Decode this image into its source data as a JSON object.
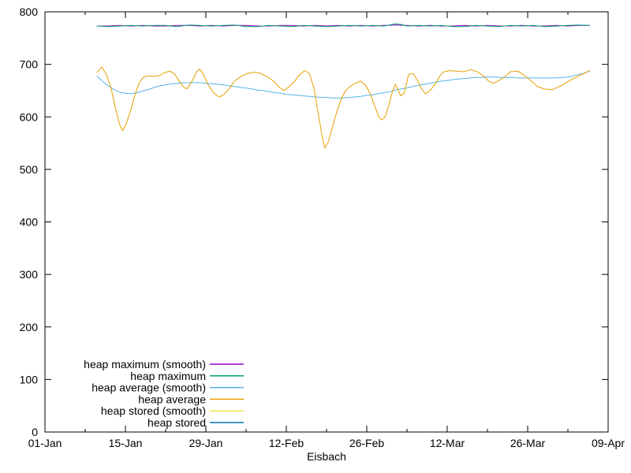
{
  "chart_data": {
    "type": "line",
    "title": "",
    "xlabel": "Eisbach",
    "ylabel": "",
    "background_color": "#ffffff",
    "axis_color": "#000000",
    "grid": false,
    "legend_position": "bottom-left",
    "ylim": [
      0,
      800
    ],
    "y_ticks": [
      "0",
      "100",
      "200",
      "300",
      "400",
      "500",
      "600",
      "700",
      "800"
    ],
    "xlim_days": [
      0,
      98
    ],
    "x_ticks": [
      {
        "day": 0,
        "label": "01-Jan"
      },
      {
        "day": 14,
        "label": "15-Jan"
      },
      {
        "day": 28,
        "label": "29-Jan"
      },
      {
        "day": 42,
        "label": "12-Feb"
      },
      {
        "day": 56,
        "label": "26-Feb"
      },
      {
        "day": 70,
        "label": "12-Mar"
      },
      {
        "day": 84,
        "label": "26-Mar"
      },
      {
        "day": 98,
        "label": "09-Apr"
      }
    ],
    "x_minor_days": [
      7,
      21,
      35,
      49,
      63,
      77,
      91
    ],
    "series": [
      {
        "name": "heap maximum (smooth)",
        "color": "#9400d3",
        "points": [
          [
            9,
            773
          ],
          [
            11,
            773
          ],
          [
            13,
            774
          ],
          [
            15,
            773
          ],
          [
            17,
            774
          ],
          [
            19,
            773
          ],
          [
            21,
            773
          ],
          [
            23,
            774
          ],
          [
            25,
            774
          ],
          [
            27,
            773
          ],
          [
            29,
            774
          ],
          [
            31,
            773
          ],
          [
            33,
            774
          ],
          [
            35,
            774
          ],
          [
            37,
            773
          ],
          [
            39,
            773
          ],
          [
            41,
            774
          ],
          [
            43,
            774
          ],
          [
            45,
            773
          ],
          [
            47,
            774
          ],
          [
            49,
            773
          ],
          [
            51,
            774
          ],
          [
            53,
            773
          ],
          [
            55,
            774
          ],
          [
            57,
            773
          ],
          [
            59,
            774
          ],
          [
            61,
            775
          ],
          [
            63,
            774
          ],
          [
            65,
            773
          ],
          [
            67,
            774
          ],
          [
            69,
            773
          ],
          [
            71,
            773
          ],
          [
            73,
            774
          ],
          [
            75,
            773
          ],
          [
            77,
            774
          ],
          [
            79,
            773
          ],
          [
            81,
            773
          ],
          [
            83,
            774
          ],
          [
            85,
            773
          ],
          [
            87,
            773
          ],
          [
            89,
            774
          ],
          [
            91,
            773
          ],
          [
            93,
            774
          ],
          [
            94.8,
            774
          ]
        ]
      },
      {
        "name": "heap maximum",
        "color": "#009e73",
        "points": [
          [
            9,
            773
          ],
          [
            11,
            772
          ],
          [
            13,
            773
          ],
          [
            15,
            774
          ],
          [
            17,
            773
          ],
          [
            19,
            774
          ],
          [
            21,
            774
          ],
          [
            23,
            772
          ],
          [
            25,
            775
          ],
          [
            27,
            774
          ],
          [
            29,
            773
          ],
          [
            31,
            774
          ],
          [
            33,
            775
          ],
          [
            35,
            772
          ],
          [
            37,
            772
          ],
          [
            39,
            774
          ],
          [
            41,
            773
          ],
          [
            43,
            772
          ],
          [
            45,
            774
          ],
          [
            47,
            773
          ],
          [
            49,
            772
          ],
          [
            51,
            773
          ],
          [
            53,
            774
          ],
          [
            55,
            773
          ],
          [
            57,
            774
          ],
          [
            59,
            773
          ],
          [
            61,
            777
          ],
          [
            62,
            776
          ],
          [
            63,
            773
          ],
          [
            65,
            774
          ],
          [
            67,
            773
          ],
          [
            69,
            774
          ],
          [
            71,
            772
          ],
          [
            73,
            772
          ],
          [
            75,
            774
          ],
          [
            77,
            773
          ],
          [
            79,
            772
          ],
          [
            81,
            774
          ],
          [
            83,
            773
          ],
          [
            85,
            774
          ],
          [
            87,
            772
          ],
          [
            89,
            773
          ],
          [
            91,
            774
          ],
          [
            93,
            775
          ],
          [
            94.8,
            774
          ]
        ]
      },
      {
        "name": "heap average (smooth)",
        "color": "#56b4e9",
        "points": [
          [
            9,
            678
          ],
          [
            10,
            668
          ],
          [
            11,
            659
          ],
          [
            12,
            652
          ],
          [
            13,
            647
          ],
          [
            14,
            645
          ],
          [
            15,
            644
          ],
          [
            16,
            646
          ],
          [
            17,
            649
          ],
          [
            18,
            652
          ],
          [
            19,
            656
          ],
          [
            20,
            659
          ],
          [
            21,
            661
          ],
          [
            22,
            663
          ],
          [
            23,
            664
          ],
          [
            24,
            665
          ],
          [
            25,
            665
          ],
          [
            26,
            665
          ],
          [
            27,
            665
          ],
          [
            28,
            664
          ],
          [
            29,
            663
          ],
          [
            30,
            662
          ],
          [
            31,
            661
          ],
          [
            32,
            659
          ],
          [
            33,
            658
          ],
          [
            34,
            656
          ],
          [
            35,
            655
          ],
          [
            36,
            653
          ],
          [
            37,
            651
          ],
          [
            38,
            650
          ],
          [
            39,
            648
          ],
          [
            40,
            646
          ],
          [
            41,
            645
          ],
          [
            42,
            643
          ],
          [
            43,
            642
          ],
          [
            44,
            641
          ],
          [
            45,
            640
          ],
          [
            46,
            639
          ],
          [
            47,
            638
          ],
          [
            48,
            637
          ],
          [
            49,
            637
          ],
          [
            50,
            636
          ],
          [
            51,
            636
          ],
          [
            52,
            636
          ],
          [
            53,
            637
          ],
          [
            54,
            638
          ],
          [
            55,
            639
          ],
          [
            56,
            641
          ],
          [
            57,
            642
          ],
          [
            58,
            644
          ],
          [
            59,
            646
          ],
          [
            60,
            648
          ],
          [
            61,
            651
          ],
          [
            62,
            653
          ],
          [
            63,
            655
          ],
          [
            64,
            658
          ],
          [
            65,
            660
          ],
          [
            66,
            662
          ],
          [
            67,
            664
          ],
          [
            68,
            666
          ],
          [
            69,
            668
          ],
          [
            70,
            669
          ],
          [
            71,
            671
          ],
          [
            72,
            672
          ],
          [
            73,
            673
          ],
          [
            74,
            674
          ],
          [
            75,
            675
          ],
          [
            76,
            675
          ],
          [
            77,
            676
          ],
          [
            78,
            676
          ],
          [
            79,
            675
          ],
          [
            80,
            675
          ],
          [
            81,
            675
          ],
          [
            82,
            674
          ],
          [
            83,
            674
          ],
          [
            84,
            674
          ],
          [
            85,
            674
          ],
          [
            86,
            674
          ],
          [
            87,
            674
          ],
          [
            88,
            674
          ],
          [
            89,
            674
          ],
          [
            90,
            675
          ],
          [
            91,
            676
          ],
          [
            92,
            678
          ],
          [
            93,
            681
          ],
          [
            94,
            684
          ],
          [
            94.8,
            687
          ]
        ]
      },
      {
        "name": "heap average",
        "color": "#e69f00",
        "points": [
          [
            9,
            684
          ],
          [
            9.9,
            695
          ],
          [
            10.7,
            680
          ],
          [
            11.5,
            655
          ],
          [
            12.3,
            615
          ],
          [
            13,
            585
          ],
          [
            13.5,
            574
          ],
          [
            14,
            583
          ],
          [
            14.8,
            608
          ],
          [
            15.6,
            640
          ],
          [
            16.4,
            665
          ],
          [
            17.2,
            676
          ],
          [
            18,
            678
          ],
          [
            19,
            677
          ],
          [
            20,
            679
          ],
          [
            21,
            685
          ],
          [
            21.8,
            687
          ],
          [
            22.6,
            681
          ],
          [
            23.5,
            666
          ],
          [
            24.3,
            655
          ],
          [
            24.8,
            654
          ],
          [
            25.6,
            668
          ],
          [
            26.4,
            686
          ],
          [
            26.9,
            691
          ],
          [
            27.5,
            683
          ],
          [
            28.3,
            663
          ],
          [
            29.2,
            648
          ],
          [
            30,
            640
          ],
          [
            30.4,
            638
          ],
          [
            31.2,
            643
          ],
          [
            32,
            653
          ],
          [
            33,
            668
          ],
          [
            34.2,
            678
          ],
          [
            35.3,
            683
          ],
          [
            36.5,
            685
          ],
          [
            37.5,
            683
          ],
          [
            38.7,
            676
          ],
          [
            39.8,
            668
          ],
          [
            40.8,
            656
          ],
          [
            41.6,
            650
          ],
          [
            42.4,
            657
          ],
          [
            43.3,
            666
          ],
          [
            44.3,
            680
          ],
          [
            45.2,
            688
          ],
          [
            46,
            683
          ],
          [
            46.8,
            655
          ],
          [
            47.5,
            610
          ],
          [
            48.2,
            565
          ],
          [
            48.7,
            541
          ],
          [
            49.3,
            552
          ],
          [
            50,
            580
          ],
          [
            50.8,
            610
          ],
          [
            51.5,
            632
          ],
          [
            52.3,
            650
          ],
          [
            53.1,
            658
          ],
          [
            54,
            664
          ],
          [
            54.9,
            668
          ],
          [
            55.8,
            660
          ],
          [
            56.6,
            644
          ],
          [
            57.4,
            620
          ],
          [
            58.1,
            600
          ],
          [
            58.6,
            594
          ],
          [
            59.2,
            600
          ],
          [
            59.9,
            625
          ],
          [
            60.5,
            650
          ],
          [
            61,
            662
          ],
          [
            61.9,
            640
          ],
          [
            62.5,
            645
          ],
          [
            63.3,
            681
          ],
          [
            64,
            683
          ],
          [
            64.8,
            670
          ],
          [
            65.6,
            652
          ],
          [
            66.2,
            644
          ],
          [
            67,
            650
          ],
          [
            67.9,
            662
          ],
          [
            68.7,
            678
          ],
          [
            69.4,
            686
          ],
          [
            70.5,
            688
          ],
          [
            71.5,
            687
          ],
          [
            72.9,
            686
          ],
          [
            74.1,
            690
          ],
          [
            75.2,
            686
          ],
          [
            76.3,
            678
          ],
          [
            77.2,
            668
          ],
          [
            78,
            664
          ],
          [
            78.8,
            668
          ],
          [
            80,
            676
          ],
          [
            81,
            686
          ],
          [
            82.3,
            687
          ],
          [
            83.4,
            679
          ],
          [
            84.6,
            668
          ],
          [
            85.7,
            658
          ],
          [
            86.9,
            653
          ],
          [
            88.3,
            652
          ],
          [
            89.6,
            658
          ],
          [
            90.7,
            665
          ],
          [
            91.8,
            672
          ],
          [
            92.9,
            678
          ],
          [
            93.8,
            683
          ],
          [
            94.8,
            688
          ]
        ]
      },
      {
        "name": "heap stored (smooth)",
        "color": "#f0e442",
        "points": []
      },
      {
        "name": "heap stored",
        "color": "#0072b2",
        "points": []
      }
    ]
  }
}
